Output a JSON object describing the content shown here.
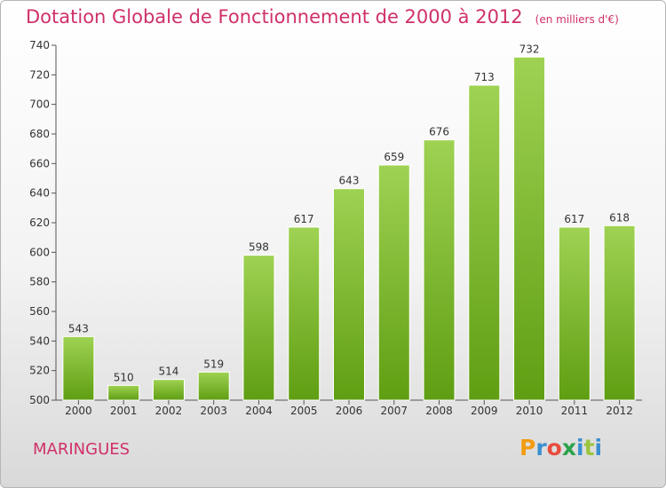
{
  "header": {
    "title": "Dotation Globale de Fonctionnement de 2000 à 2012",
    "unit": "(en milliers d'€)"
  },
  "footer": {
    "commune": "MARINGUES",
    "brand_letters": [
      "P",
      "r",
      "o",
      "x",
      "i",
      "t",
      "i"
    ]
  },
  "colors": {
    "title": "#d0306a",
    "bar_top": "#9fd253",
    "bar_bottom": "#5f9e12",
    "axis": "#555555"
  },
  "chart_data": {
    "type": "bar",
    "title": "Dotation Globale de Fonctionnement de 2000 à 2012",
    "subtitle": "(en milliers d'€)",
    "xlabel": "",
    "ylabel": "",
    "categories": [
      "2000",
      "2001",
      "2002",
      "2003",
      "2004",
      "2005",
      "2006",
      "2007",
      "2008",
      "2009",
      "2010",
      "2011",
      "2012"
    ],
    "values": [
      543,
      510,
      514,
      519,
      598,
      617,
      643,
      659,
      676,
      713,
      732,
      617,
      618
    ],
    "ylim": [
      500,
      740
    ],
    "yticks": [
      500,
      520,
      540,
      560,
      580,
      600,
      620,
      640,
      660,
      680,
      700,
      720,
      740
    ],
    "grid": false,
    "legend": "none"
  }
}
